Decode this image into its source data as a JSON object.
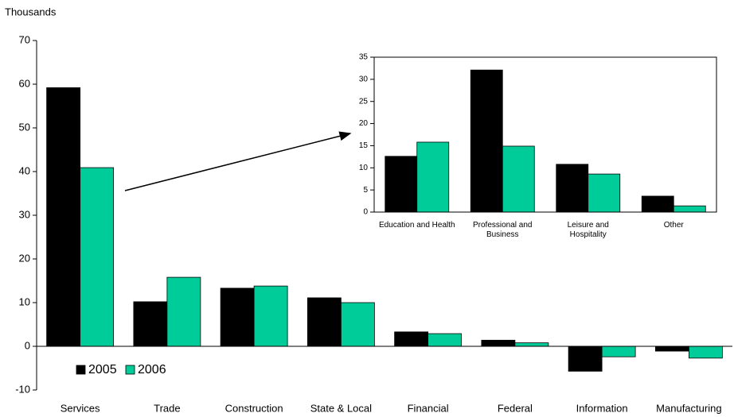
{
  "chart_data": [
    {
      "type": "bar",
      "y_label": "Thousands",
      "categories": [
        "Services",
        "Trade",
        "Construction",
        "State & Local",
        "Financial",
        "Federal",
        "Information",
        "Manufacturing"
      ],
      "series": [
        {
          "name": "2005",
          "color": "#000000",
          "values": [
            59.2,
            10.2,
            13.3,
            11.1,
            3.3,
            1.4,
            -5.7,
            -1.1
          ]
        },
        {
          "name": "2006",
          "color": "#00cc99",
          "values": [
            40.9,
            15.8,
            13.8,
            10.0,
            2.9,
            0.8,
            -2.4,
            -2.7
          ]
        }
      ],
      "ylim": [
        -10,
        70
      ],
      "yticks": [
        -10,
        0,
        10,
        20,
        30,
        40,
        50,
        60,
        70
      ],
      "legend": "lower left"
    },
    {
      "type": "bar",
      "categories": [
        "Education and Health",
        "Professional and Business",
        "Leisure and Hospitality",
        "Other"
      ],
      "series": [
        {
          "color": "#000000",
          "values": [
            12.6,
            32.1,
            10.8,
            3.6
          ]
        },
        {
          "color": "#00cc99",
          "values": [
            15.8,
            14.9,
            8.6,
            1.4
          ]
        }
      ],
      "ylim": [
        0,
        35
      ],
      "yticks": [
        0,
        5,
        10,
        15,
        20,
        25,
        30,
        35
      ]
    }
  ]
}
